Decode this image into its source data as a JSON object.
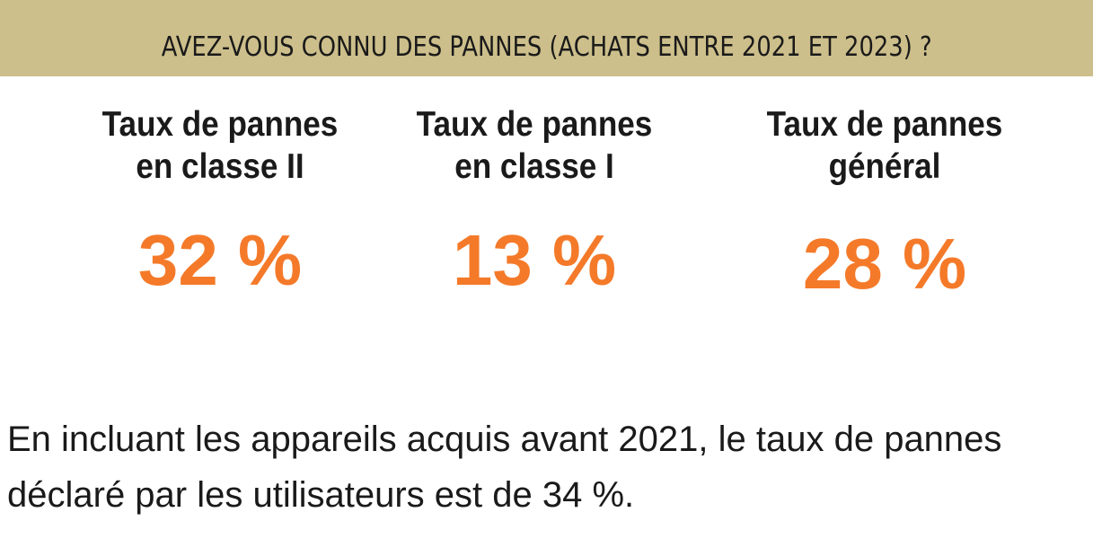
{
  "header": {
    "title": "AVEZ-VOUS CONNU DES PANNES (ACHATS ENTRE 2021 ET 2023) ?",
    "background_color": "#cdbf8b"
  },
  "stats": [
    {
      "label_line1": "Taux de pannes",
      "label_line2": "en classe II",
      "value": "32 %"
    },
    {
      "label_line1": "Taux de pannes",
      "label_line2": "en classe I",
      "value": "13 %"
    },
    {
      "label_line1": "Taux de pannes",
      "label_line2": "général",
      "value": "28 %"
    }
  ],
  "accent_color": "#f47a2a",
  "footnote": {
    "line1": "En incluant les appareils acquis avant 2021, le taux de pannes",
    "line2": "déclaré par les utilisateurs est de 34 %."
  }
}
